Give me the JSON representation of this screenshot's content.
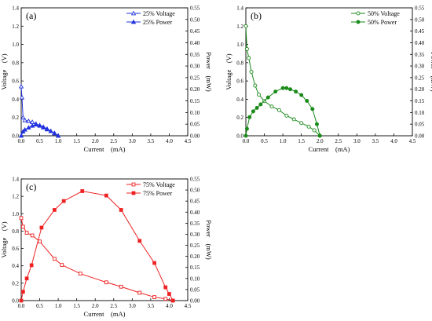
{
  "chart_data": [
    {
      "type": "line",
      "panel_label": "(a)",
      "xlabel": "Current　(mA)",
      "ylabel_left": "Voltage　(V)",
      "ylabel_right": "Power　(mW)",
      "xlim": [
        0,
        4.5
      ],
      "ylim_left": [
        0,
        1.4
      ],
      "ylim_right": [
        0,
        0.55
      ],
      "x_ticks": [
        "0.0",
        "0.5",
        "1.0",
        "1.5",
        "2.0",
        "2.5",
        "3.0",
        "3.5",
        "4.0",
        "4.5"
      ],
      "y_left_ticks": [
        "0.0",
        "0.2",
        "0.4",
        "0.6",
        "0.8",
        "1.0",
        "1.2",
        "1.4"
      ],
      "y_right_ticks": [
        "0.00",
        "0.05",
        "0.10",
        "0.15",
        "0.20",
        "0.25",
        "0.30",
        "0.35",
        "0.40",
        "0.45",
        "0.50",
        "0.55"
      ],
      "legend_position": "top-right",
      "color": "#2233dd",
      "series": [
        {
          "name": "25% Voltage",
          "axis": "left",
          "marker": "triangle-open",
          "x": [
            0.0,
            0.02,
            0.05,
            0.1,
            0.2,
            0.3,
            0.4,
            0.5,
            0.6,
            0.7,
            0.8,
            0.9,
            1.0
          ],
          "y": [
            0.54,
            0.42,
            0.2,
            0.17,
            0.16,
            0.15,
            0.13,
            0.11,
            0.09,
            0.07,
            0.05,
            0.03,
            0.0
          ]
        },
        {
          "name": "25% Power",
          "axis": "right",
          "marker": "triangle-filled",
          "x": [
            0.0,
            0.05,
            0.1,
            0.2,
            0.3,
            0.4,
            0.5,
            0.6,
            0.7,
            0.8,
            0.9,
            1.0
          ],
          "y": [
            0.0,
            0.018,
            0.026,
            0.035,
            0.043,
            0.048,
            0.045,
            0.038,
            0.03,
            0.02,
            0.01,
            0.0
          ]
        }
      ]
    },
    {
      "type": "line",
      "panel_label": "(b)",
      "xlabel": "Current　(mA)",
      "ylabel_left": "Voltage　(V)",
      "ylabel_right": "Power　(mW)",
      "xlim": [
        0,
        4.5
      ],
      "ylim_left": [
        0,
        1.4
      ],
      "ylim_right": [
        0,
        0.55
      ],
      "x_ticks": [
        "0.0",
        "0.5",
        "1.0",
        "1.5",
        "2.0",
        "2.5",
        "3.0",
        "3.5",
        "4.0",
        "4.5"
      ],
      "y_left_ticks": [
        "0.0",
        "0.2",
        "0.4",
        "0.6",
        "0.8",
        "1.0",
        "1.2",
        "1.4"
      ],
      "y_right_ticks": [
        "0.00",
        "0.05",
        "0.10",
        "0.15",
        "0.20",
        "0.25",
        "0.30",
        "0.35",
        "0.40",
        "0.45",
        "0.50",
        "0.55"
      ],
      "legend_position": "top-right",
      "color": "#1a8a1a",
      "series": [
        {
          "name": "50% Voltage",
          "axis": "left",
          "marker": "circle-open",
          "x": [
            0.0,
            0.03,
            0.08,
            0.15,
            0.25,
            0.35,
            0.5,
            0.7,
            0.9,
            1.1,
            1.3,
            1.5,
            1.7,
            1.85,
            2.0
          ],
          "y": [
            1.2,
            0.95,
            0.85,
            0.7,
            0.55,
            0.45,
            0.38,
            0.32,
            0.28,
            0.22,
            0.18,
            0.14,
            0.1,
            0.06,
            0.0
          ]
        },
        {
          "name": "50% Power",
          "axis": "right",
          "marker": "circle-filled",
          "x": [
            0.0,
            0.03,
            0.1,
            0.2,
            0.3,
            0.4,
            0.6,
            0.8,
            1.0,
            1.1,
            1.2,
            1.35,
            1.5,
            1.65,
            1.8,
            1.92,
            2.0
          ],
          "y": [
            0.0,
            0.03,
            0.08,
            0.105,
            0.12,
            0.135,
            0.165,
            0.19,
            0.205,
            0.205,
            0.2,
            0.19,
            0.175,
            0.15,
            0.115,
            0.05,
            0.0
          ]
        }
      ]
    },
    {
      "type": "line",
      "panel_label": "(c)",
      "xlabel": "Current　(mA)",
      "ylabel_left": "Voltage　(V)",
      "ylabel_right": "Power　(mW)",
      "xlim": [
        0,
        4.5
      ],
      "ylim_left": [
        0,
        1.4
      ],
      "ylim_right": [
        0,
        0.55
      ],
      "x_ticks": [
        "0.0",
        "0.5",
        "1.0",
        "1.5",
        "2.0",
        "2.5",
        "3.0",
        "3.5",
        "4.0",
        "4.5"
      ],
      "y_left_ticks": [
        "0.0",
        "0.2",
        "0.4",
        "0.6",
        "0.8",
        "1.0",
        "1.2",
        "1.4"
      ],
      "y_right_ticks": [
        "0.00",
        "0.05",
        "0.10",
        "0.15",
        "0.20",
        "0.25",
        "0.30",
        "0.35",
        "0.40",
        "0.45",
        "0.50",
        "0.55"
      ],
      "legend_position": "top-right",
      "color": "#ee2222",
      "series": [
        {
          "name": "75% Voltage",
          "axis": "left",
          "marker": "square-open",
          "x": [
            0.0,
            0.05,
            0.15,
            0.3,
            0.5,
            0.9,
            1.1,
            1.6,
            2.3,
            2.7,
            3.2,
            3.6,
            3.9,
            4.1
          ],
          "y": [
            0.95,
            0.85,
            0.78,
            0.75,
            0.68,
            0.48,
            0.41,
            0.31,
            0.21,
            0.16,
            0.09,
            0.04,
            0.02,
            0.0
          ]
        },
        {
          "name": "75% Power",
          "axis": "right",
          "marker": "square-filled",
          "x": [
            0.0,
            0.05,
            0.15,
            0.28,
            0.55,
            0.9,
            1.15,
            1.65,
            2.3,
            2.7,
            3.2,
            3.6,
            3.9,
            4.0,
            4.1
          ],
          "y": [
            0.0,
            0.04,
            0.1,
            0.16,
            0.33,
            0.41,
            0.45,
            0.495,
            0.475,
            0.41,
            0.27,
            0.17,
            0.06,
            0.03,
            0.0
          ]
        }
      ]
    }
  ]
}
